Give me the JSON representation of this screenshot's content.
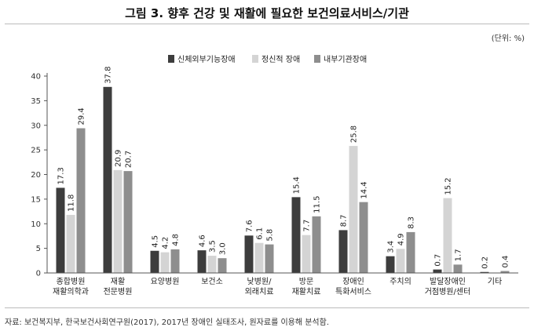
{
  "title": "그림 3. 향후 건강 및 재활에 필요한 보건의료서비스/기관",
  "unit": "(단위: %)",
  "source": "자료: 보건복지부, 한국보건사회연구원(2017), 2017년 장애인 실태조사, 원자료를 이용해 분석함.",
  "chart_data": {
    "type": "bar",
    "categories": [
      [
        "종합병원",
        "재활의학과"
      ],
      [
        "재활",
        "전문병원"
      ],
      [
        "요양병원"
      ],
      [
        "보건소"
      ],
      [
        "낮병원/",
        "외래치료"
      ],
      [
        "방문",
        "재활치료"
      ],
      [
        "장애인",
        "특화서비스"
      ],
      [
        "주치의"
      ],
      [
        "발달장애인",
        "거점병원/센터"
      ],
      [
        "기타"
      ]
    ],
    "series": [
      {
        "name": "신체외부기능장애",
        "color": "#3d3d3d",
        "values": [
          17.3,
          37.8,
          4.5,
          4.6,
          7.6,
          15.4,
          8.7,
          3.4,
          0.7,
          0.2
        ]
      },
      {
        "name": "정신적 장애",
        "color": "#d4d4d4",
        "values": [
          11.8,
          20.9,
          4.2,
          3.5,
          6.1,
          7.7,
          25.8,
          4.9,
          15.2,
          null
        ]
      },
      {
        "name": "내부기관장애",
        "color": "#8e8e8e",
        "values": [
          29.4,
          20.7,
          4.8,
          3.0,
          5.8,
          11.5,
          14.4,
          8.3,
          1.7,
          0.4
        ]
      }
    ],
    "labels": [
      [
        "17.3",
        "37.8",
        "4.5",
        "4.6",
        "7.6",
        "15.4",
        "8.7",
        "3.4",
        "0.7",
        "0.2"
      ],
      [
        "11.8",
        "20.9",
        "4.2",
        "3.5",
        "6.1",
        "7.7",
        "25.8",
        "4.9",
        "15.2",
        ""
      ],
      [
        "29.4",
        "20.7",
        "4.8",
        "3.0",
        "5.8",
        "11.5",
        "14.4",
        "8.3",
        "1.7",
        "0.4"
      ]
    ],
    "yticks": [
      0,
      5,
      10,
      15,
      20,
      25,
      30,
      35,
      40
    ],
    "ylim": [
      0,
      40
    ],
    "legend_position": "top-center",
    "grid": false
  }
}
